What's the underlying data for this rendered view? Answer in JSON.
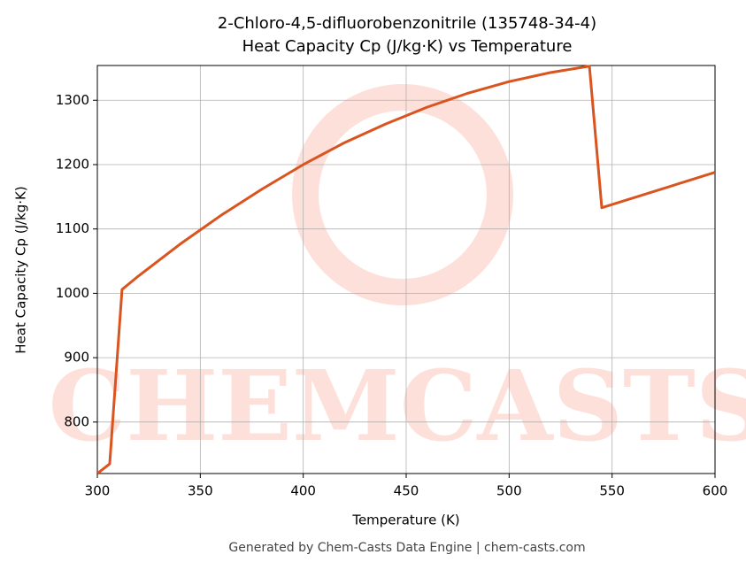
{
  "chart_data": {
    "type": "line",
    "title": "2-Chloro-4,5-difluorobenzonitrile (135748-34-4)",
    "subtitle": "Heat Capacity Cp (J/kg·K) vs Temperature",
    "x_label": "Temperature (K)",
    "y_label": "Heat Capacity Cp (J/kg·K)",
    "footer": "Generated by Chem-Casts Data Engine | chem-casts.com",
    "watermark": "CHEMCASTS",
    "x": [
      300,
      306,
      312,
      320,
      340,
      360,
      380,
      400,
      420,
      440,
      460,
      480,
      500,
      520,
      539,
      545,
      600
    ],
    "series": [
      {
        "name": "Cp",
        "color": "#d9541e",
        "values": [
          720,
          735,
          1006,
          1027,
          1076,
          1121,
          1162,
          1200,
          1234,
          1263,
          1289,
          1311,
          1329,
          1343,
          1353,
          1133,
          1188
        ]
      }
    ],
    "xlim": [
      300,
      600
    ],
    "ylim": [
      720,
      1354
    ],
    "xticks": [
      300,
      350,
      400,
      450,
      500,
      550,
      600
    ],
    "yticks": [
      800,
      900,
      1000,
      1100,
      1200,
      1300
    ],
    "grid": true
  }
}
